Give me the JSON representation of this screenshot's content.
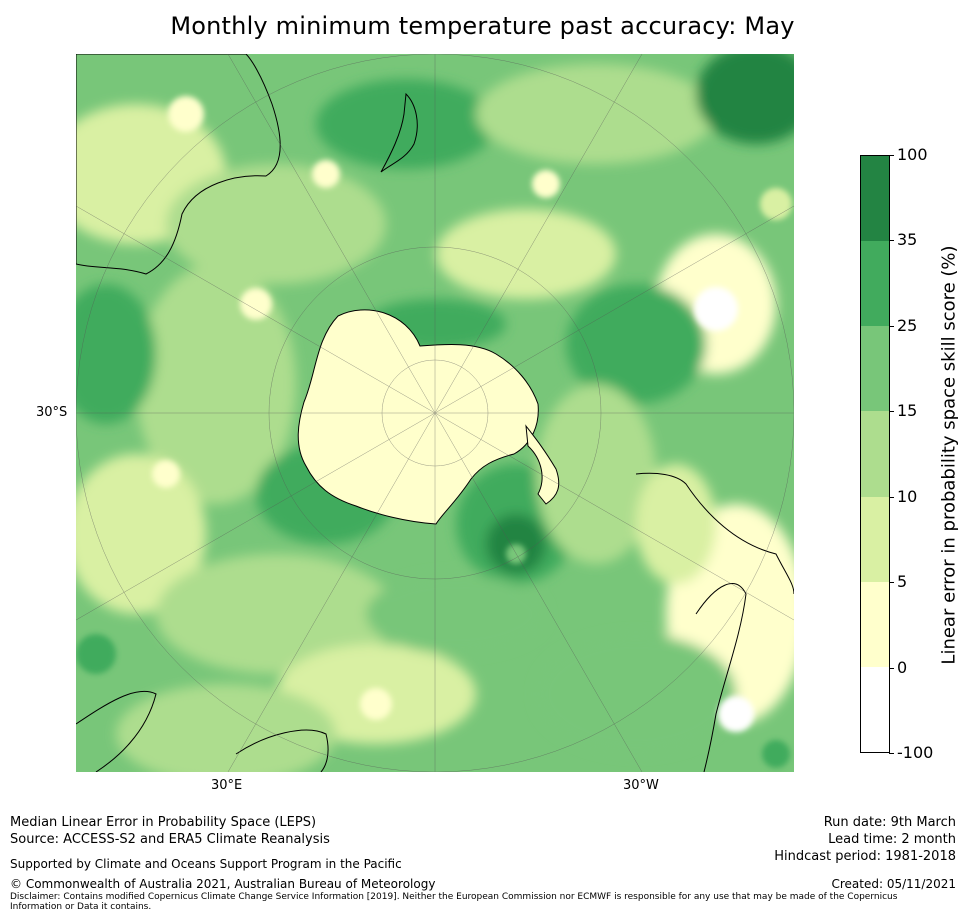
{
  "title": "Monthly minimum temperature past accuracy: May",
  "map": {
    "projection": "south-polar-stereographic",
    "labels": {
      "lat_left": "30°S",
      "lon_bottom_left": "30°E",
      "lon_bottom_right": "30°W"
    }
  },
  "legend": {
    "title": "Linear error in probability space skill score (%)",
    "ticks": [
      "100",
      "35",
      "25",
      "15",
      "10",
      "5",
      "0",
      "-100"
    ],
    "bins": [
      {
        "range": "35 to 100",
        "color": "#238443"
      },
      {
        "range": "25 to 35",
        "color": "#41ab5d"
      },
      {
        "range": "15 to 25",
        "color": "#78c679"
      },
      {
        "range": "10 to 15",
        "color": "#addd8e"
      },
      {
        "range": "5 to 10",
        "color": "#d9f0a3"
      },
      {
        "range": "0 to 5",
        "color": "#ffffcc"
      },
      {
        "range": "-100 to 0",
        "color": "#ffffff"
      }
    ]
  },
  "footer": {
    "left_line1": "Median Linear Error in Probability Space (LEPS)",
    "left_line2": "Source: ACCESS-S2 and ERA5 Climate Reanalysis",
    "supported": "Supported by Climate and Oceans Support Program in the Pacific",
    "copyright": "© Commonwealth of Australia 2021, Australian Bureau of Meteorology",
    "disclaimer": "Disclaimer: Contains modified Copernicus Climate Change Service Information [2019]. Neither the European Commission nor ECMWF is responsible for any use that may be made of the Copernicus Information or Data it contains.",
    "run_date": "Run date: 9th March",
    "lead_time": "Lead time: 2 month",
    "hindcast": "Hindcast period: 1981-2018",
    "created": "Created: 05/11/2021"
  },
  "colors": {
    "ocean_base": "#78c679",
    "coastline": "#000000",
    "graticule": "#555555"
  }
}
